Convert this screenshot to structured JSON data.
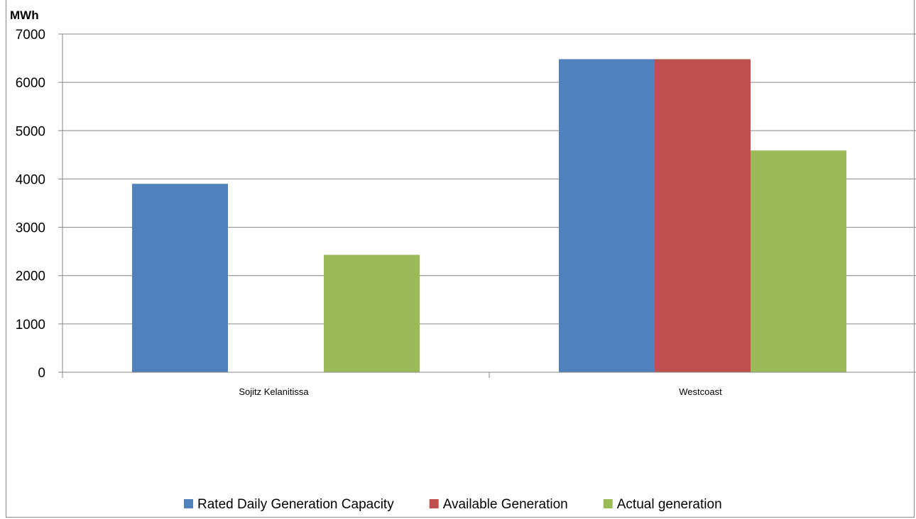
{
  "chart_data": {
    "type": "bar",
    "ylabel": "MWh",
    "xlabel": "",
    "ylim": [
      0,
      7000
    ],
    "yticks": [
      0,
      1000,
      2000,
      3000,
      4000,
      5000,
      6000,
      7000
    ],
    "categories": [
      "Sojitz Kelanitissa",
      "Westcoast"
    ],
    "series": [
      {
        "name": "Rated Daily Generation Capacity",
        "color": "#4f81bd",
        "values": [
          3900,
          6480
        ]
      },
      {
        "name": "Available Generation",
        "color": "#c0504d",
        "values": [
          0,
          6480
        ]
      },
      {
        "name": "Actual generation",
        "color": "#9bbb59",
        "values": [
          2430,
          4590
        ]
      }
    ],
    "grid": true,
    "legend_position": "bottom"
  }
}
